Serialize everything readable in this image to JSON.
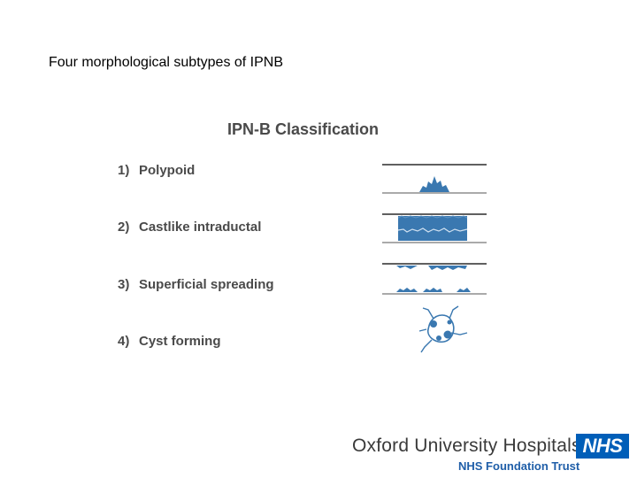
{
  "slide": {
    "title": "Four morphological subtypes of IPNB"
  },
  "figure": {
    "heading": "IPN-B Classification",
    "items": [
      {
        "number": "1)",
        "label": "Polypoid",
        "icon": "polypoid-diagram"
      },
      {
        "number": "2)",
        "label": "Castlike intraductal",
        "icon": "castlike-diagram"
      },
      {
        "number": "3)",
        "label": "Superficial spreading",
        "icon": "superficial-spreading-diagram"
      },
      {
        "number": "4)",
        "label": "Cyst forming",
        "icon": "cyst-forming-diagram"
      }
    ],
    "diagram_color": "#3a78b0"
  },
  "footer": {
    "organization": "Oxford University Hospitals",
    "subtitle": "NHS Foundation Trust",
    "logo_text": "NHS",
    "logo_color": "#005eb8"
  }
}
